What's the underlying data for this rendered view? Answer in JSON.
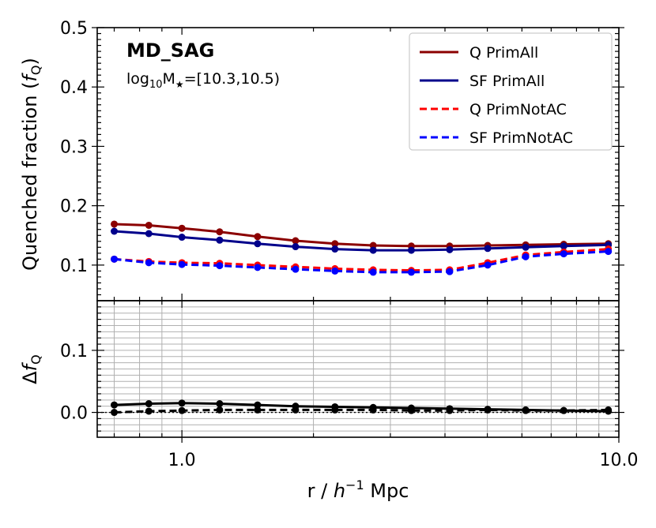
{
  "chart_data": [
    {
      "type": "line",
      "title": "MD_SAG",
      "subtitle_base": "log",
      "subtitle_sub": "10",
      "subtitle_mid": "M",
      "subtitle_star": "★",
      "subtitle_range": "=[10.3,10.5)",
      "ylabel_main": "Quenched fraction (",
      "ylabel_f": "f",
      "ylabel_sub": "Q",
      "ylabel_close": ")",
      "xscale": "log",
      "xlim": [
        0.64,
        10.0
      ],
      "ylim": [
        0.04,
        0.5
      ],
      "yticks": [
        0.1,
        0.2,
        0.3,
        0.4,
        0.5
      ],
      "ytick_labels": [
        "0.1",
        "0.2",
        "0.3",
        "0.4",
        "0.5"
      ],
      "legend_position": "top-right",
      "x": [
        0.7,
        0.84,
        1.0,
        1.22,
        1.49,
        1.82,
        2.24,
        2.74,
        3.35,
        4.1,
        5.01,
        6.12,
        7.48,
        9.46
      ],
      "series": [
        {
          "name": "Q PrimAll",
          "color": "#8b0000",
          "style": "solid",
          "values": [
            0.169,
            0.167,
            0.162,
            0.156,
            0.148,
            0.141,
            0.136,
            0.133,
            0.132,
            0.132,
            0.133,
            0.134,
            0.135,
            0.136
          ]
        },
        {
          "name": "SF PrimAll",
          "color": "#00008b",
          "style": "solid",
          "values": [
            0.157,
            0.153,
            0.147,
            0.142,
            0.136,
            0.131,
            0.127,
            0.125,
            0.125,
            0.126,
            0.128,
            0.13,
            0.132,
            0.134
          ]
        },
        {
          "name": "Q PrimNotAC",
          "color": "#ff0000",
          "style": "dashed",
          "values": [
            0.11,
            0.106,
            0.104,
            0.103,
            0.1,
            0.097,
            0.094,
            0.092,
            0.091,
            0.092,
            0.104,
            0.117,
            0.122,
            0.127
          ]
        },
        {
          "name": "SF PrimNotAC",
          "color": "#0000ff",
          "style": "dashed",
          "values": [
            0.11,
            0.104,
            0.101,
            0.099,
            0.096,
            0.093,
            0.09,
            0.088,
            0.088,
            0.089,
            0.1,
            0.114,
            0.119,
            0.123
          ]
        }
      ]
    },
    {
      "type": "line",
      "ylabel_delta": "Δ",
      "ylabel_f": "f",
      "ylabel_sub": "Q",
      "xlabel_main": "r / ",
      "xlabel_h": "h",
      "xlabel_exp": "−1",
      "xlabel_unit": " Mpc",
      "xscale": "log",
      "xlim": [
        0.64,
        10.0
      ],
      "ylim": [
        -0.04,
        0.18
      ],
      "yticks": [
        0.0,
        0.1
      ],
      "ytick_labels": [
        "0.0",
        "0.1"
      ],
      "xtick_labels": [
        "1.0",
        "10.0"
      ],
      "reference_line": 0.0,
      "x": [
        0.7,
        0.84,
        1.0,
        1.22,
        1.49,
        1.82,
        2.24,
        2.74,
        3.35,
        4.1,
        5.01,
        6.12,
        7.48,
        9.46
      ],
      "series": [
        {
          "name": "Δf_Q PrimAll",
          "color": "#000000",
          "style": "solid",
          "values": [
            0.012,
            0.014,
            0.015,
            0.014,
            0.012,
            0.01,
            0.009,
            0.008,
            0.007,
            0.006,
            0.005,
            0.004,
            0.003,
            0.002
          ]
        },
        {
          "name": "Δf_Q PrimNotAC",
          "color": "#000000",
          "style": "dashed",
          "values": [
            0.0,
            0.002,
            0.003,
            0.004,
            0.004,
            0.004,
            0.004,
            0.004,
            0.003,
            0.003,
            0.004,
            0.003,
            0.003,
            0.004
          ]
        }
      ]
    }
  ]
}
